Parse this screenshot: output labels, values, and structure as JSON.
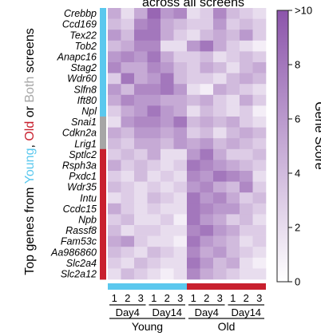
{
  "chart_data": {
    "type": "heatmap",
    "title": "across all screens",
    "ylabel": {
      "prefix": "Top genes from ",
      "young": "Young",
      "sep1": ", ",
      "old": "Old",
      "sep2": " or ",
      "both": "Both",
      "suffix": " screens"
    },
    "colorbar": {
      "label": "Gene Score",
      "min": 0,
      "max": 10,
      "ticks": [
        "0",
        "2",
        "4",
        "6",
        "8",
        ">10"
      ]
    },
    "colors": {
      "young": "#5bc8ee",
      "old": "#c8202e",
      "both": "#a6a6a6",
      "low": "#ffffff",
      "high": "#8c55ab"
    },
    "columns": [
      "1",
      "2",
      "3",
      "1",
      "2",
      "3",
      "1",
      "2",
      "3",
      "1",
      "2",
      "3"
    ],
    "day_labels": [
      "Day4",
      "Day14",
      "Day4",
      "Day14"
    ],
    "group_labels": [
      "Young",
      "Old"
    ],
    "genes": [
      "Crebbp",
      "Ccd169",
      "Tex22",
      "Tob2",
      "Anapc16",
      "Stag2",
      "Wdr60",
      "Slfn8",
      "Ift80",
      "Npl",
      "Snai1",
      "Cdkn2a",
      "Lrig1",
      "Sptlc2",
      "Rsph3a",
      "Pxdc1",
      "Wdr35",
      "Intu",
      "Ccdc15",
      "Npb",
      "Rassf8",
      "Fam53c",
      "Aa986860",
      "Slc2a4",
      "Slc2a12"
    ],
    "row_groups": [
      "young",
      "young",
      "young",
      "young",
      "young",
      "young",
      "young",
      "young",
      "young",
      "young",
      "both",
      "both",
      "both",
      "old",
      "old",
      "old",
      "old",
      "old",
      "old",
      "old",
      "old",
      "old",
      "old",
      "old",
      "old"
    ],
    "values": [
      [
        5,
        2,
        5,
        9,
        6,
        7,
        2,
        3,
        7,
        4,
        3,
        2
      ],
      [
        4,
        3,
        7,
        8,
        5,
        4,
        3,
        3,
        6,
        3,
        4,
        3
      ],
      [
        6,
        4,
        8,
        8,
        5,
        3,
        2,
        4,
        5,
        4,
        6,
        3
      ],
      [
        4,
        5,
        7,
        7,
        2,
        2,
        6,
        8,
        5,
        3,
        2,
        1
      ],
      [
        6,
        7,
        6,
        8,
        5,
        3,
        3,
        4,
        2,
        3,
        4,
        3
      ],
      [
        7,
        5,
        5,
        7,
        6,
        4,
        3,
        5,
        4,
        2,
        4,
        5
      ],
      [
        3,
        8,
        5,
        6,
        8,
        4,
        3,
        3,
        2,
        4,
        5,
        4
      ],
      [
        6,
        4,
        7,
        7,
        8,
        6,
        2,
        1,
        5,
        4,
        3,
        2
      ],
      [
        5,
        7,
        6,
        6,
        5,
        5,
        4,
        5,
        3,
        2,
        5,
        3
      ],
      [
        3,
        5,
        6,
        8,
        6,
        5,
        2,
        4,
        3,
        2,
        3,
        1
      ],
      [
        2,
        6,
        7,
        7,
        6,
        8,
        4,
        5,
        4,
        5,
        3,
        2
      ],
      [
        5,
        4,
        6,
        6,
        5,
        6,
        3,
        4,
        2,
        4,
        5,
        4
      ],
      [
        4,
        3,
        5,
        5,
        4,
        6,
        5,
        6,
        4,
        5,
        4,
        3
      ],
      [
        3,
        4,
        3,
        5,
        2,
        2,
        6,
        8,
        5,
        3,
        3,
        4
      ],
      [
        5,
        3,
        4,
        3,
        2,
        3,
        8,
        7,
        6,
        5,
        4,
        3
      ],
      [
        3,
        2,
        4,
        2,
        3,
        2,
        7,
        6,
        8,
        7,
        6,
        2
      ],
      [
        4,
        3,
        2,
        3,
        2,
        3,
        6,
        7,
        5,
        4,
        7,
        3
      ],
      [
        2,
        3,
        2,
        4,
        3,
        2,
        8,
        6,
        7,
        5,
        3,
        4
      ],
      [
        5,
        3,
        2,
        3,
        2,
        2,
        8,
        7,
        6,
        6,
        4,
        3
      ],
      [
        3,
        4,
        2,
        2,
        3,
        1,
        8,
        6,
        5,
        3,
        4,
        2
      ],
      [
        4,
        2,
        3,
        3,
        2,
        2,
        7,
        8,
        6,
        5,
        3,
        3
      ],
      [
        5,
        6,
        3,
        2,
        2,
        1,
        8,
        6,
        5,
        4,
        2,
        3
      ],
      [
        4,
        3,
        2,
        4,
        3,
        2,
        7,
        5,
        6,
        4,
        3,
        2
      ],
      [
        3,
        2,
        4,
        3,
        2,
        2,
        8,
        6,
        4,
        5,
        2,
        1
      ],
      [
        2,
        4,
        3,
        2,
        1,
        2,
        7,
        5,
        4,
        3,
        2,
        2
      ]
    ]
  }
}
